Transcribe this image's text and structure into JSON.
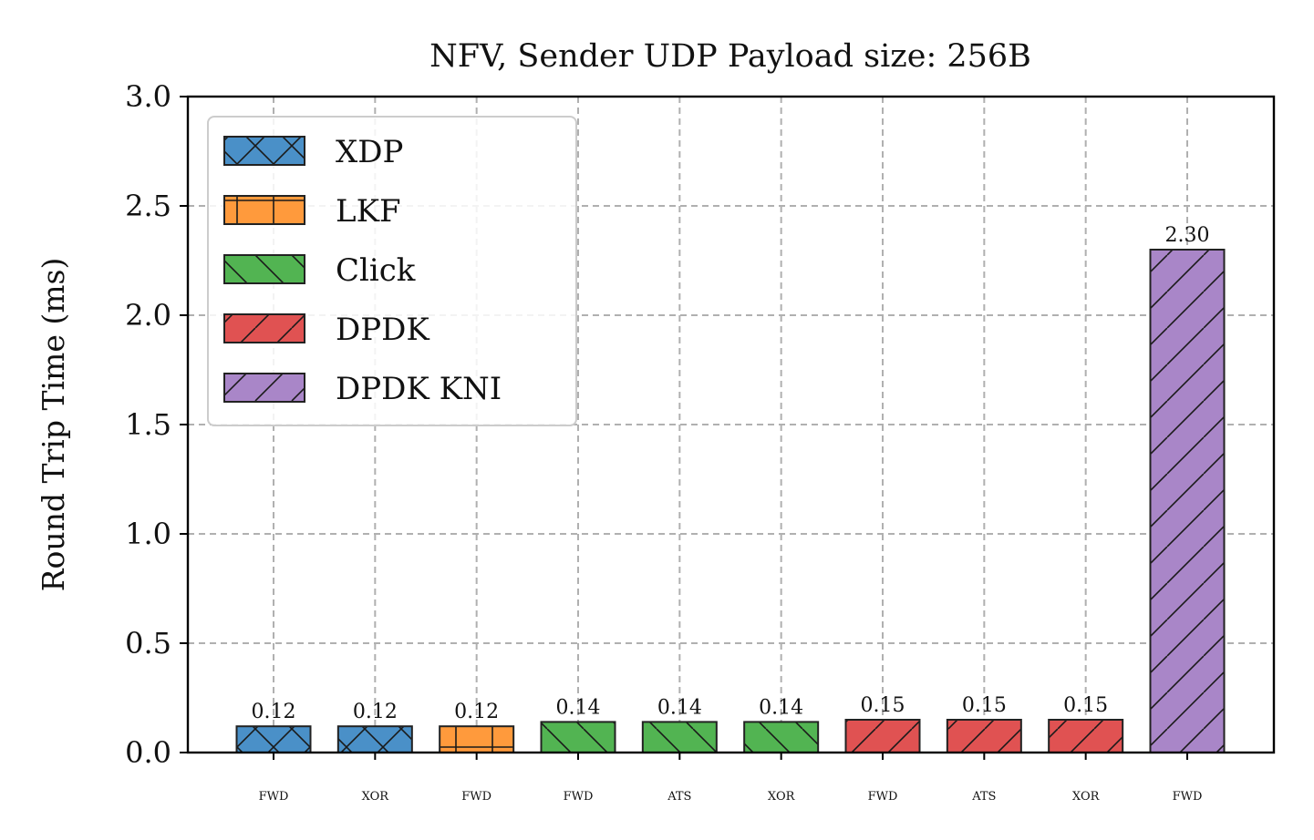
{
  "chart_data": {
    "type": "bar",
    "title": "NFV, Sender UDP Payload size: 256B",
    "xlabel": "",
    "ylabel": "Round Trip Time (ms)",
    "ylim": [
      0,
      3.0
    ],
    "yticks": [
      "0.0",
      "0.5",
      "1.0",
      "1.5",
      "2.0",
      "2.5",
      "3.0"
    ],
    "grid": true,
    "legend_position": "top-left",
    "categories": [
      "FWD",
      "XOR",
      "FWD",
      "FWD",
      "ATS",
      "XOR",
      "FWD",
      "ATS",
      "XOR",
      "FWD"
    ],
    "bars": [
      {
        "category": "FWD",
        "series": "XDP",
        "value": 0.12,
        "label": "0.12"
      },
      {
        "category": "XOR",
        "series": "XDP",
        "value": 0.12,
        "label": "0.12"
      },
      {
        "category": "FWD",
        "series": "LKF",
        "value": 0.12,
        "label": "0.12"
      },
      {
        "category": "FWD",
        "series": "Click",
        "value": 0.14,
        "label": "0.14"
      },
      {
        "category": "ATS",
        "series": "Click",
        "value": 0.14,
        "label": "0.14"
      },
      {
        "category": "XOR",
        "series": "Click",
        "value": 0.14,
        "label": "0.14"
      },
      {
        "category": "FWD",
        "series": "DPDK",
        "value": 0.15,
        "label": "0.15"
      },
      {
        "category": "ATS",
        "series": "DPDK",
        "value": 0.15,
        "label": "0.15"
      },
      {
        "category": "XOR",
        "series": "DPDK",
        "value": 0.15,
        "label": "0.15"
      },
      {
        "category": "FWD",
        "series": "DPDK KNI",
        "value": 2.3,
        "label": "2.30"
      }
    ],
    "series": [
      {
        "name": "XDP",
        "color": "#4a90c8",
        "hatch": "x"
      },
      {
        "name": "LKF",
        "color": "#ff9a3c",
        "hatch": "+"
      },
      {
        "name": "Click",
        "color": "#52b452",
        "hatch": "\\"
      },
      {
        "name": "DPDK",
        "color": "#e05252",
        "hatch": "/"
      },
      {
        "name": "DPDK KNI",
        "color": "#a986c8",
        "hatch": "/"
      }
    ]
  }
}
